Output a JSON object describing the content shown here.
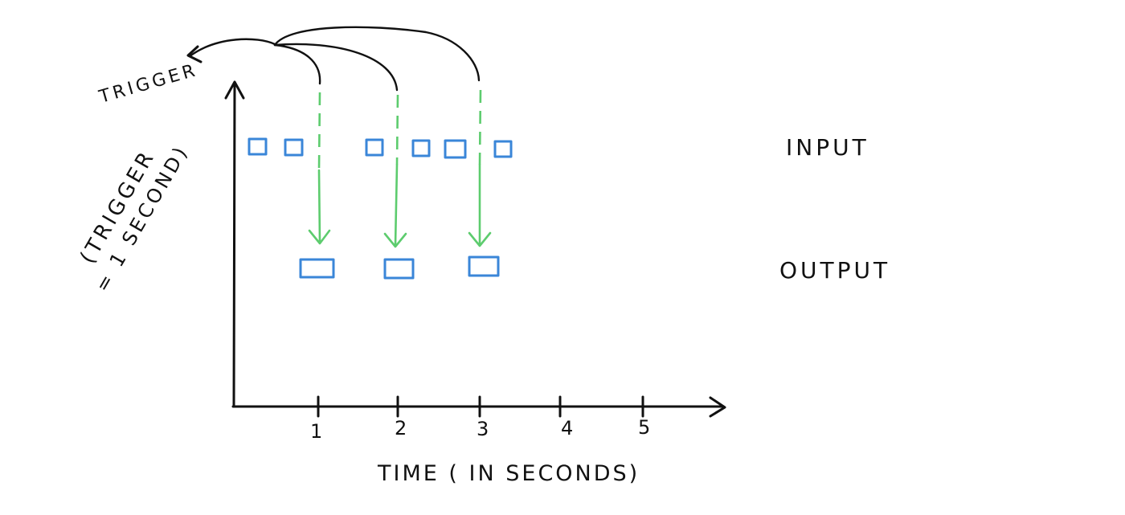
{
  "labels": {
    "trigger": "TRIGGER",
    "trigger_interval_line1": "(TRIGGER",
    "trigger_interval_line2": "= 1 SECOND)",
    "input": "INPUT",
    "output": "OUTPUT",
    "x_axis": "TIME ( IN SECONDS)"
  },
  "x_ticks": [
    "1",
    "2",
    "3",
    "4",
    "5"
  ],
  "colors": {
    "axis": "#111111",
    "data_box": "#3a86d8",
    "trigger_arrow": "#5dcc6e"
  }
}
